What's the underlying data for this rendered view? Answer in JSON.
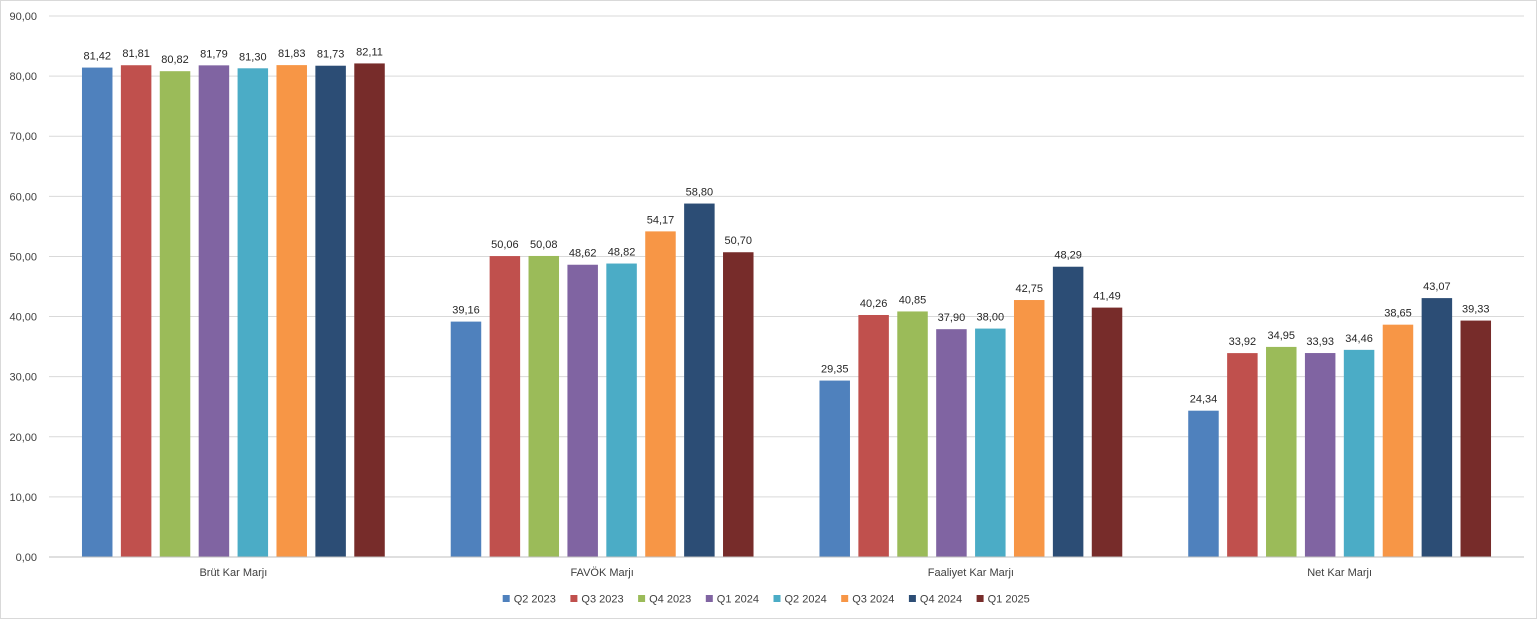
{
  "chart_data": {
    "type": "bar",
    "title": "",
    "xlabel": "",
    "ylabel": "",
    "ylim": [
      0,
      90
    ],
    "y_ticks": [
      "0,00",
      "10,00",
      "20,00",
      "30,00",
      "40,00",
      "50,00",
      "60,00",
      "70,00",
      "80,00",
      "90,00"
    ],
    "grid": true,
    "legend_position": "bottom",
    "categories": [
      "Brüt Kar Marjı",
      "FAVÖK Marjı",
      "Faaliyet Kar Marjı",
      "Net Kar Marjı"
    ],
    "series": [
      {
        "name": "Q2 2023",
        "color": "#4F81BD",
        "values": [
          81.42,
          39.16,
          29.35,
          24.34
        ],
        "labels": [
          "81,42",
          "39,16",
          "29,35",
          "24,34"
        ]
      },
      {
        "name": "Q3 2023",
        "color": "#C0504D",
        "values": [
          81.81,
          50.06,
          40.26,
          33.92
        ],
        "labels": [
          "81,81",
          "50,06",
          "40,26",
          "33,92"
        ]
      },
      {
        "name": "Q4 2023",
        "color": "#9BBB59",
        "values": [
          80.82,
          50.08,
          40.85,
          34.95
        ],
        "labels": [
          "80,82",
          "50,08",
          "40,85",
          "34,95"
        ]
      },
      {
        "name": "Q1 2024",
        "color": "#8064A2",
        "values": [
          81.79,
          48.62,
          37.9,
          33.93
        ],
        "labels": [
          "81,79",
          "48,62",
          "37,90",
          "33,93"
        ]
      },
      {
        "name": "Q2 2024",
        "color": "#4BACC6",
        "values": [
          81.3,
          48.82,
          38.0,
          34.46
        ],
        "labels": [
          "81,30",
          "48,82",
          "38,00",
          "34,46"
        ]
      },
      {
        "name": "Q3 2024",
        "color": "#F79646",
        "values": [
          81.83,
          54.17,
          42.75,
          38.65
        ],
        "labels": [
          "81,83",
          "54,17",
          "42,75",
          "38,65"
        ]
      },
      {
        "name": "Q4 2024",
        "color": "#2C4D75",
        "values": [
          81.73,
          58.8,
          48.29,
          43.07
        ],
        "labels": [
          "81,73",
          "58,80",
          "48,29",
          "43,07"
        ]
      },
      {
        "name": "Q1 2025",
        "color": "#772C2A",
        "values": [
          82.11,
          50.7,
          41.49,
          39.33
        ],
        "labels": [
          "82,11",
          "50,70",
          "41,49",
          "39,33"
        ]
      }
    ]
  }
}
